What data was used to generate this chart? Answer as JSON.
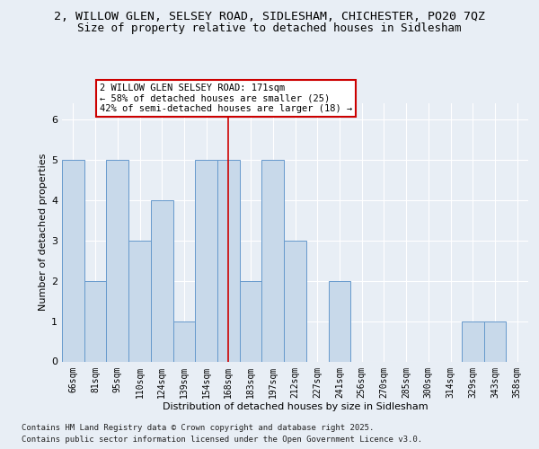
{
  "title_line1": "2, WILLOW GLEN, SELSEY ROAD, SIDLESHAM, CHICHESTER, PO20 7QZ",
  "title_line2": "Size of property relative to detached houses in Sidlesham",
  "xlabel": "Distribution of detached houses by size in Sidlesham",
  "ylabel": "Number of detached properties",
  "categories": [
    "66sqm",
    "81sqm",
    "95sqm",
    "110sqm",
    "124sqm",
    "139sqm",
    "154sqm",
    "168sqm",
    "183sqm",
    "197sqm",
    "212sqm",
    "227sqm",
    "241sqm",
    "256sqm",
    "270sqm",
    "285sqm",
    "300sqm",
    "314sqm",
    "329sqm",
    "343sqm",
    "358sqm"
  ],
  "values": [
    5,
    2,
    5,
    3,
    4,
    1,
    5,
    5,
    2,
    5,
    3,
    0,
    2,
    0,
    0,
    0,
    0,
    0,
    1,
    1,
    0
  ],
  "bar_color": "#c8d9ea",
  "bar_edge_color": "#6699cc",
  "red_line_index": 7,
  "annotation_text": "2 WILLOW GLEN SELSEY ROAD: 171sqm\n← 58% of detached houses are smaller (25)\n42% of semi-detached houses are larger (18) →",
  "annotation_box_color": "#ffffff",
  "annotation_box_edge": "#cc0000",
  "ylim": [
    0,
    6.4
  ],
  "yticks": [
    0,
    1,
    2,
    3,
    4,
    5,
    6
  ],
  "footer_line1": "Contains HM Land Registry data © Crown copyright and database right 2025.",
  "footer_line2": "Contains public sector information licensed under the Open Government Licence v3.0.",
  "bg_color": "#e8eef5",
  "plot_bg_color": "#e8eef5",
  "title_fontsize": 9.5,
  "subtitle_fontsize": 9,
  "tick_fontsize": 7,
  "axis_label_fontsize": 8,
  "footer_fontsize": 6.5
}
